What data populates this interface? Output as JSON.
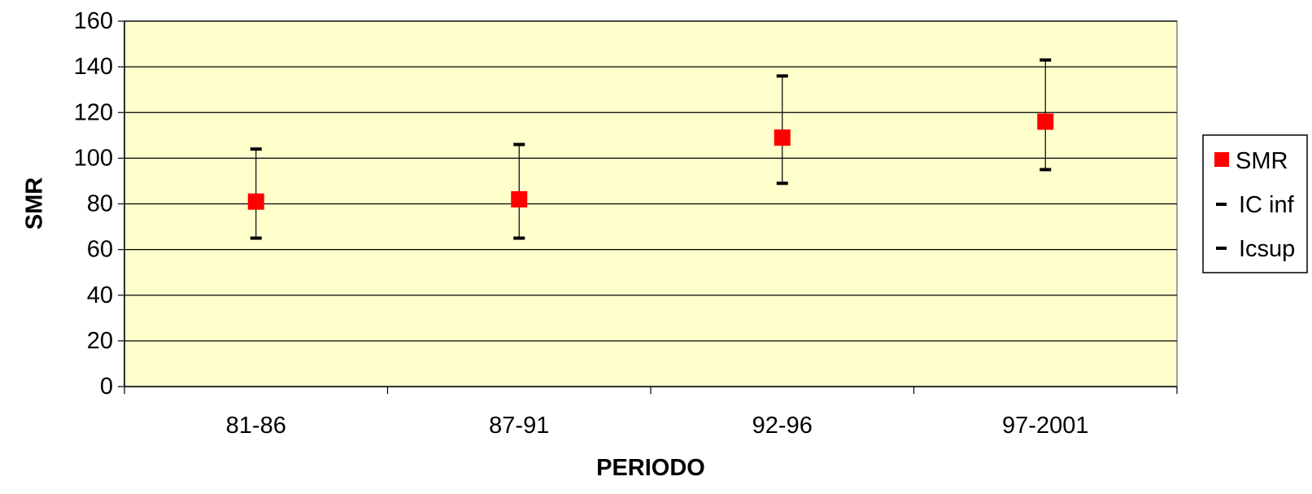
{
  "chart_data": {
    "type": "scatter",
    "title": "",
    "xlabel": "PERIODO",
    "ylabel": "SMR",
    "categories": [
      "81-86",
      "87-91",
      "92-96",
      "97-2001"
    ],
    "ylim": [
      0,
      160
    ],
    "yticks": [
      0,
      20,
      40,
      60,
      80,
      100,
      120,
      140,
      160
    ],
    "grid": true,
    "legend_position": "right",
    "series": [
      {
        "name": "SMR",
        "values": [
          81,
          82,
          109,
          116
        ],
        "color": "#ff0000",
        "marker": "square"
      },
      {
        "name": "IC inf",
        "values": [
          65,
          65,
          89,
          95
        ],
        "color": "#000000",
        "marker": "dash"
      },
      {
        "name": "Icsup",
        "values": [
          104,
          106,
          136,
          143
        ],
        "color": "#000000",
        "marker": "dash"
      }
    ],
    "error_bars": true,
    "plot_background": "#ffffcc"
  }
}
